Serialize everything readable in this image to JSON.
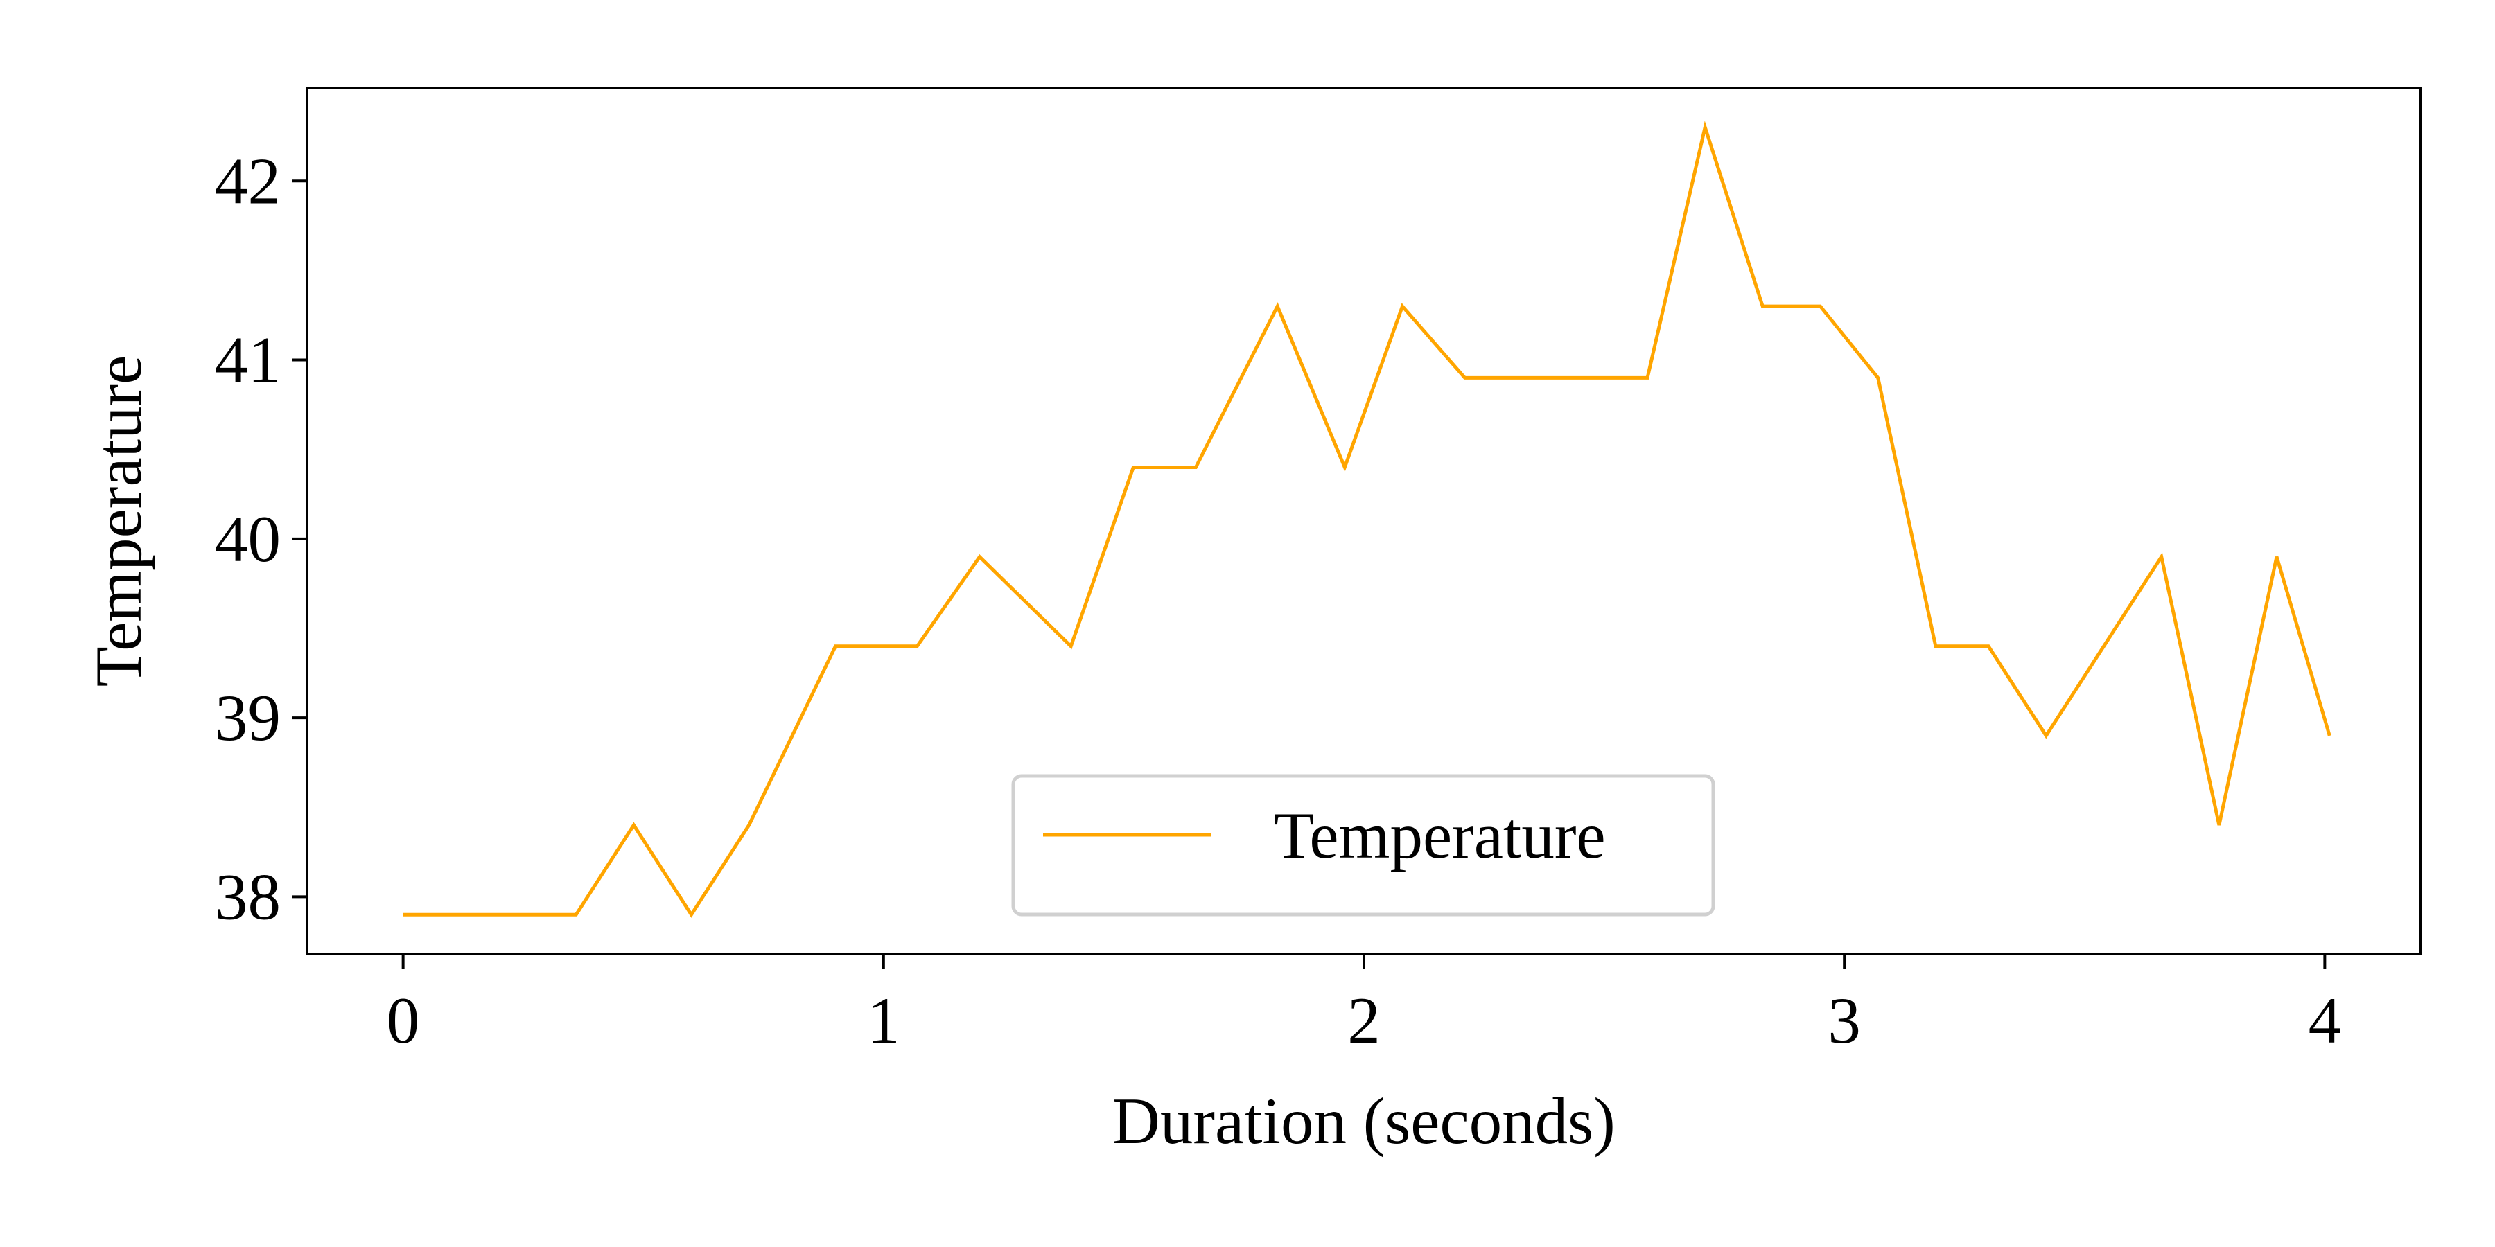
{
  "chart_data": {
    "type": "line",
    "title": "",
    "xlabel": "Duration (seconds)",
    "ylabel": "Temperature",
    "xlim": [
      -0.2,
      4.2
    ],
    "ylim": [
      37.68,
      42.52
    ],
    "xticks": [
      0,
      1,
      2,
      3,
      4
    ],
    "yticks": [
      38,
      39,
      40,
      41,
      42
    ],
    "grid": false,
    "legend_position": "bottom-center",
    "series": [
      {
        "name": "Temperature",
        "color": "#FFA500",
        "x": [
          0,
          0.12,
          0.24,
          0.36,
          0.48,
          0.6,
          0.72,
          0.9,
          1.07,
          1.2,
          1.39,
          1.52,
          1.65,
          1.82,
          1.96,
          2.08,
          2.21,
          2.59,
          2.71,
          2.83,
          2.95,
          3.07,
          3.19,
          3.3,
          3.42,
          3.66,
          3.78,
          3.9,
          4.01
        ],
        "y": [
          37.9,
          37.9,
          37.9,
          37.9,
          38.4,
          37.9,
          38.4,
          39.4,
          39.4,
          39.9,
          39.4,
          40.4,
          40.4,
          41.3,
          40.4,
          41.3,
          40.9,
          40.9,
          42.3,
          41.3,
          41.3,
          40.9,
          39.4,
          39.4,
          38.9,
          39.9,
          38.4,
          39.9,
          38.9
        ]
      }
    ]
  }
}
